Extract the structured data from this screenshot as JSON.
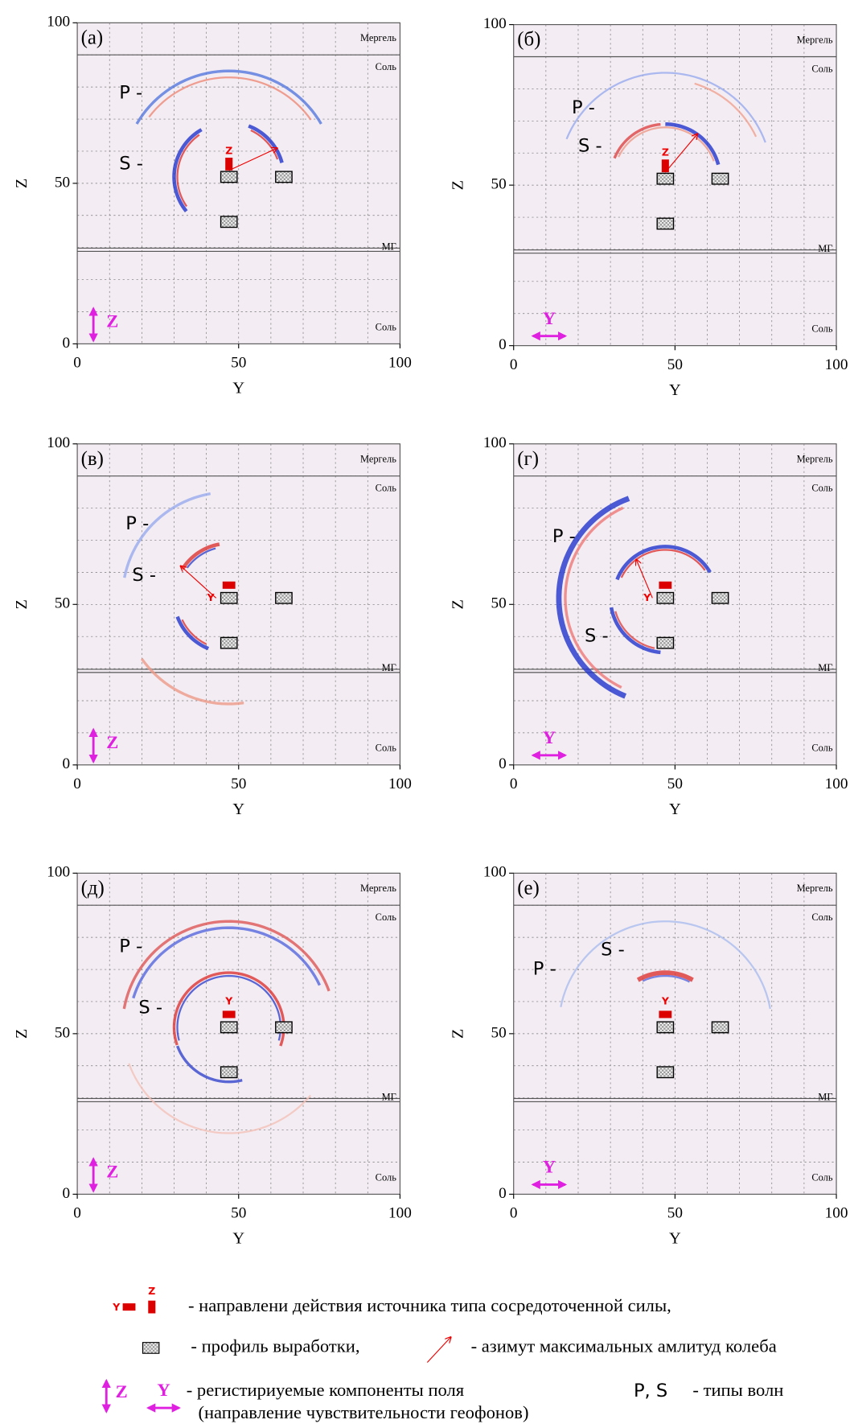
{
  "axes": {
    "xlabel": "Y",
    "ylabel": "Z",
    "xlim": [
      0,
      100
    ],
    "ylim": [
      0,
      100
    ],
    "xticks": [
      0,
      50,
      100
    ],
    "yticks": [
      0,
      50,
      100
    ]
  },
  "layers": {
    "top": "Мергель",
    "salt": "Соль",
    "mg": "МГ",
    "bottom": "Соль"
  },
  "waves": {
    "P": "P -",
    "S": "S -"
  },
  "panels": [
    {
      "label": "(а)",
      "source": "Z",
      "component": "Z"
    },
    {
      "label": "(б)",
      "source": "Z",
      "component": "Y"
    },
    {
      "label": "(в)",
      "source": "Y",
      "component": "Z"
    },
    {
      "label": "(г)",
      "source": "Y",
      "component": "Y"
    },
    {
      "label": "(д)",
      "source": "Y",
      "component": "Z"
    },
    {
      "label": "(е)",
      "source": "Y",
      "component": "Y"
    }
  ],
  "legend": {
    "source_y": "Y",
    "source_z": "Z",
    "source_text": "- направлени действия источника типа сосредоточенной силы,",
    "profile_text": "- профиль выработки,",
    "azimuth_text": "- азимут максимальных амлитуд колеба",
    "comp_z": "Z",
    "comp_y": "Y",
    "comp_text": "- регистириуемые компоненты поля",
    "comp_note": "(направление чувствительности геофонов)",
    "wave_types": "P, S",
    "wave_text": "- типы волн"
  }
}
